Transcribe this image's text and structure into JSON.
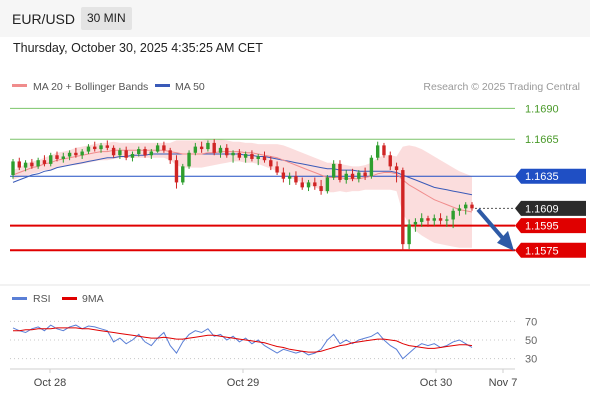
{
  "header": {
    "symbol": "EUR/USD",
    "interval": "30 MIN",
    "datetime": "Thursday, October 30, 2025 4:35:25 AM CET"
  },
  "legend": {
    "ma20_label": "MA 20 + Bollinger Bands",
    "ma50_label": "MA 50",
    "credit": "Research © 2025 Trading Central"
  },
  "colors": {
    "bull": "#2e9e2e",
    "bear": "#d02424",
    "ma20": "#f08c8c",
    "ma50": "#3a5ab8",
    "band": "#f9d2d2",
    "green_line": "#7cc46a",
    "blue_line": "#1f4fc4",
    "red_line": "#e00000",
    "rsi": "#5a7fd6",
    "rsi_ma": "#e00000",
    "arrow": "#2e5aa6"
  },
  "chart_data": [
    {
      "type": "candlestick",
      "ylim": [
        1.1555,
        1.17
      ],
      "price_levels": [
        {
          "label": "1.1690",
          "value": 1.169,
          "kind": "resistance"
        },
        {
          "label": "1.1665",
          "value": 1.1665,
          "kind": "resistance"
        },
        {
          "label": "1.1635",
          "value": 1.1635,
          "kind": "pivot"
        },
        {
          "label": "1.1609",
          "value": 1.1609,
          "kind": "last"
        },
        {
          "label": "1.1595",
          "value": 1.1595,
          "kind": "support"
        },
        {
          "label": "1.1575",
          "value": 1.1575,
          "kind": "support"
        }
      ],
      "x_ticks": [
        "Oct 28",
        "Oct 29",
        "Oct 30",
        "Nov 7"
      ],
      "forecast_arrow": {
        "from": 1.1608,
        "to": 1.1577,
        "direction": "down"
      },
      "ohlc": [
        [
          1.1636,
          1.1649,
          1.1633,
          1.1647
        ],
        [
          1.1647,
          1.165,
          1.164,
          1.1642
        ],
        [
          1.1642,
          1.1648,
          1.1639,
          1.1646
        ],
        [
          1.1646,
          1.1649,
          1.1641,
          1.1643
        ],
        [
          1.1643,
          1.165,
          1.1641,
          1.1648
        ],
        [
          1.1648,
          1.1652,
          1.1643,
          1.1645
        ],
        [
          1.1645,
          1.1654,
          1.1643,
          1.1652
        ],
        [
          1.1652,
          1.1655,
          1.1647,
          1.1649
        ],
        [
          1.1649,
          1.1654,
          1.1646,
          1.1651
        ],
        [
          1.1651,
          1.1656,
          1.1648,
          1.1654
        ],
        [
          1.1654,
          1.1658,
          1.165,
          1.1652
        ],
        [
          1.1652,
          1.1657,
          1.1649,
          1.1655
        ],
        [
          1.1655,
          1.1661,
          1.1653,
          1.1659
        ],
        [
          1.1659,
          1.1663,
          1.1655,
          1.1657
        ],
        [
          1.1657,
          1.1662,
          1.1654,
          1.166
        ],
        [
          1.166,
          1.1664,
          1.1656,
          1.1658
        ],
        [
          1.1658,
          1.166,
          1.165,
          1.1652
        ],
        [
          1.1652,
          1.1658,
          1.1649,
          1.1656
        ],
        [
          1.1656,
          1.1659,
          1.1648,
          1.165
        ],
        [
          1.165,
          1.1655,
          1.1647,
          1.1653
        ],
        [
          1.1653,
          1.1659,
          1.1651,
          1.1657
        ],
        [
          1.1657,
          1.1659,
          1.165,
          1.1652
        ],
        [
          1.1652,
          1.1657,
          1.1649,
          1.1655
        ],
        [
          1.1655,
          1.1662,
          1.1654,
          1.166
        ],
        [
          1.166,
          1.1663,
          1.1654,
          1.1656
        ],
        [
          1.1656,
          1.1658,
          1.1645,
          1.1648
        ],
        [
          1.1648,
          1.1652,
          1.1625,
          1.163
        ],
        [
          1.163,
          1.1645,
          1.1628,
          1.1643
        ],
        [
          1.1643,
          1.1656,
          1.1641,
          1.1654
        ],
        [
          1.1654,
          1.1662,
          1.1652,
          1.1659
        ],
        [
          1.1659,
          1.1663,
          1.1654,
          1.1657
        ],
        [
          1.1657,
          1.1664,
          1.1655,
          1.1662
        ],
        [
          1.1662,
          1.1665,
          1.1652,
          1.1654
        ],
        [
          1.1654,
          1.166,
          1.165,
          1.1658
        ],
        [
          1.1658,
          1.1661,
          1.165,
          1.1652
        ],
        [
          1.1652,
          1.1656,
          1.1646,
          1.1654
        ],
        [
          1.1654,
          1.1657,
          1.1648,
          1.165
        ],
        [
          1.165,
          1.1655,
          1.1646,
          1.1653
        ],
        [
          1.1653,
          1.1656,
          1.1647,
          1.1649
        ],
        [
          1.1649,
          1.1653,
          1.1644,
          1.1651
        ],
        [
          1.1651,
          1.1655,
          1.1646,
          1.1648
        ],
        [
          1.1648,
          1.1651,
          1.164,
          1.1643
        ],
        [
          1.1643,
          1.1647,
          1.1636,
          1.1638
        ],
        [
          1.1638,
          1.1642,
          1.163,
          1.1633
        ],
        [
          1.1633,
          1.1638,
          1.1628,
          1.1635
        ],
        [
          1.1635,
          1.1639,
          1.1628,
          1.163
        ],
        [
          1.163,
          1.1634,
          1.1624,
          1.1626
        ],
        [
          1.1626,
          1.1632,
          1.1623,
          1.163
        ],
        [
          1.163,
          1.1634,
          1.1624,
          1.1627
        ],
        [
          1.1627,
          1.1632,
          1.162,
          1.1623
        ],
        [
          1.1623,
          1.1636,
          1.1621,
          1.1634
        ],
        [
          1.1634,
          1.1648,
          1.1632,
          1.1645
        ],
        [
          1.1645,
          1.1648,
          1.163,
          1.1632
        ],
        [
          1.1632,
          1.164,
          1.1629,
          1.1637
        ],
        [
          1.1637,
          1.1641,
          1.1631,
          1.1633
        ],
        [
          1.1633,
          1.164,
          1.163,
          1.1638
        ],
        [
          1.1638,
          1.1642,
          1.1632,
          1.1635
        ],
        [
          1.1635,
          1.1652,
          1.1633,
          1.165
        ],
        [
          1.165,
          1.1663,
          1.1648,
          1.166
        ],
        [
          1.166,
          1.1662,
          1.165,
          1.1652
        ],
        [
          1.1652,
          1.1655,
          1.164,
          1.1643
        ],
        [
          1.1643,
          1.1646,
          1.163,
          1.164
        ],
        [
          1.164,
          1.1642,
          1.1575,
          1.158
        ],
        [
          1.158,
          1.16,
          1.1576,
          1.1596
        ],
        [
          1.1596,
          1.1601,
          1.159,
          1.1598
        ],
        [
          1.1598,
          1.1605,
          1.1594,
          1.1601
        ],
        [
          1.1601,
          1.1603,
          1.1594,
          1.1599
        ],
        [
          1.1599,
          1.1604,
          1.1595,
          1.1601
        ],
        [
          1.1601,
          1.1605,
          1.1596,
          1.1599
        ],
        [
          1.1599,
          1.1603,
          1.1594,
          1.16
        ],
        [
          1.16,
          1.1609,
          1.1593,
          1.1607
        ],
        [
          1.1607,
          1.1612,
          1.1603,
          1.1609
        ],
        [
          1.1609,
          1.1614,
          1.1604,
          1.1612
        ],
        [
          1.1612,
          1.1614,
          1.1607,
          1.1609
        ]
      ],
      "ma20": [
        1.1636,
        1.1638,
        1.164,
        1.1642,
        1.1643,
        1.1645,
        1.1646,
        1.1648,
        1.1649,
        1.165,
        1.1651,
        1.1652,
        1.1653,
        1.1654,
        1.1655,
        1.1655,
        1.1656,
        1.1656,
        1.1656,
        1.1656,
        1.1656,
        1.1656,
        1.1656,
        1.1656,
        1.1656,
        1.1655,
        1.1654,
        1.1653,
        1.1653,
        1.1653,
        1.1653,
        1.1654,
        1.1654,
        1.1655,
        1.1655,
        1.1655,
        1.1655,
        1.1654,
        1.1654,
        1.1653,
        1.1652,
        1.1651,
        1.165,
        1.1648,
        1.1646,
        1.1644,
        1.1642,
        1.164,
        1.1638,
        1.1636,
        1.1634,
        1.1634,
        1.1634,
        1.1633,
        1.1633,
        1.1633,
        1.1634,
        1.1635,
        1.1637,
        1.1638,
        1.1638,
        1.1637,
        1.1632,
        1.1628,
        1.1625,
        1.1622,
        1.1619,
        1.1616,
        1.1614,
        1.1612,
        1.161,
        1.1608,
        1.1607,
        1.1606
      ],
      "ma50": [
        1.163,
        1.1632,
        1.1634,
        1.1636,
        1.1637,
        1.1639,
        1.164,
        1.1642,
        1.1643,
        1.1644,
        1.1645,
        1.1646,
        1.1647,
        1.1648,
        1.1649,
        1.165,
        1.165,
        1.1651,
        1.1651,
        1.1652,
        1.1652,
        1.1652,
        1.1653,
        1.1653,
        1.1653,
        1.1653,
        1.1653,
        1.1653,
        1.1653,
        1.1653,
        1.1653,
        1.1653,
        1.1653,
        1.1653,
        1.1653,
        1.1653,
        1.1653,
        1.1652,
        1.1652,
        1.1651,
        1.1651,
        1.165,
        1.1649,
        1.1648,
        1.1647,
        1.1646,
        1.1645,
        1.1644,
        1.1643,
        1.1642,
        1.1641,
        1.1641,
        1.164,
        1.164,
        1.164,
        1.1639,
        1.1639,
        1.1639,
        1.1639,
        1.1639,
        1.1639,
        1.1638,
        1.1636,
        1.1634,
        1.1632,
        1.163,
        1.1628,
        1.1626,
        1.1625,
        1.1624,
        1.1623,
        1.1622,
        1.1621,
        1.162
      ],
      "band_half_width": [
        0.0004,
        0.0004,
        0.0005,
        0.0005,
        0.0005,
        0.0005,
        0.0006,
        0.0006,
        0.0006,
        0.0006,
        0.0007,
        0.0007,
        0.0007,
        0.0007,
        0.0007,
        0.0007,
        0.0007,
        0.0006,
        0.0006,
        0.0006,
        0.0006,
        0.0006,
        0.0006,
        0.0006,
        0.0006,
        0.0007,
        0.001,
        0.0011,
        0.0011,
        0.0011,
        0.0011,
        0.0011,
        0.001,
        0.001,
        0.0009,
        0.0008,
        0.0008,
        0.0008,
        0.0008,
        0.0008,
        0.0009,
        0.001,
        0.0011,
        0.0012,
        0.0012,
        0.0012,
        0.0012,
        0.0012,
        0.0012,
        0.0012,
        0.0012,
        0.0012,
        0.0011,
        0.0011,
        0.001,
        0.001,
        0.001,
        0.0011,
        0.0013,
        0.0014,
        0.0014,
        0.0014,
        0.0027,
        0.0032,
        0.0034,
        0.0035,
        0.0035,
        0.0035,
        0.0034,
        0.0033,
        0.0032,
        0.0031,
        0.003,
        0.0029
      ]
    },
    {
      "type": "line",
      "legend": [
        "RSI",
        "9MA"
      ],
      "ylim": [
        20,
        80
      ],
      "y_ticks": [
        70,
        50,
        30
      ],
      "series": [
        {
          "name": "RSI",
          "values": [
            63,
            60,
            58,
            62,
            64,
            60,
            66,
            62,
            60,
            64,
            66,
            62,
            65,
            64,
            62,
            60,
            48,
            52,
            46,
            50,
            56,
            48,
            44,
            52,
            58,
            44,
            36,
            48,
            56,
            60,
            58,
            62,
            54,
            56,
            50,
            54,
            48,
            52,
            46,
            50,
            44,
            40,
            36,
            40,
            38,
            36,
            38,
            34,
            36,
            40,
            50,
            56,
            46,
            50,
            46,
            50,
            52,
            54,
            58,
            50,
            44,
            40,
            30,
            36,
            42,
            46,
            44,
            46,
            42,
            44,
            48,
            50,
            46,
            42
          ]
        },
        {
          "name": "9MA",
          "values": [
            60,
            60,
            61,
            61,
            62,
            62,
            62,
            63,
            63,
            63,
            63,
            62,
            62,
            61,
            60,
            59,
            58,
            57,
            56,
            55,
            54,
            53,
            52,
            52,
            53,
            52,
            51,
            51,
            52,
            53,
            54,
            55,
            55,
            54,
            53,
            52,
            51,
            50,
            49,
            48,
            47,
            45,
            43,
            42,
            40,
            39,
            38,
            37,
            37,
            38,
            40,
            42,
            44,
            45,
            47,
            48,
            49,
            50,
            51,
            51,
            50,
            49,
            46,
            44,
            43,
            42,
            41,
            41,
            42,
            43,
            44,
            45,
            45,
            44
          ]
        }
      ]
    }
  ]
}
